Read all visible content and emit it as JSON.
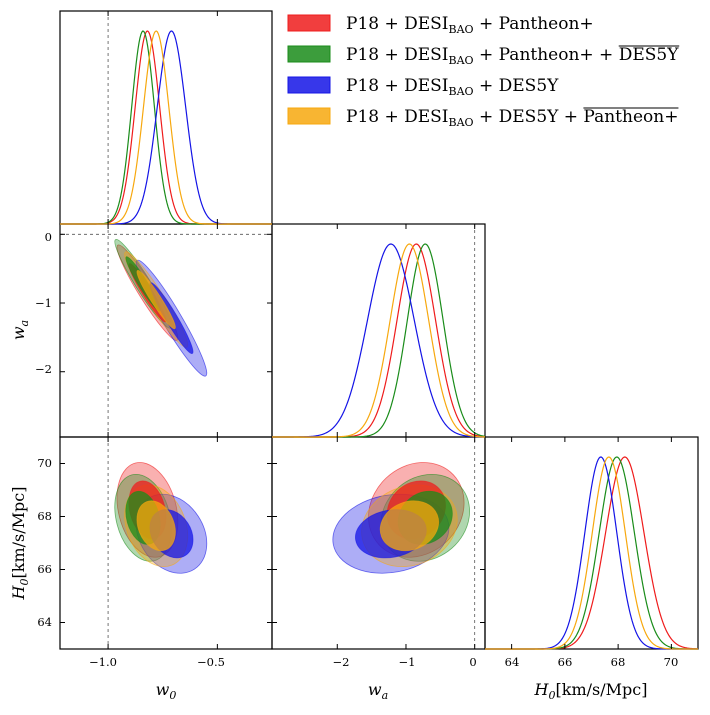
{
  "chart_data": {
    "type": "corner-plot",
    "series": [
      {
        "id": "s1",
        "name": "P18 + DESI_BAO + Pantheon+",
        "color": "#ef1c1c",
        "w0": -0.82,
        "w0_sigma": 0.056,
        "wa": -0.85,
        "wa_sigma": 0.28,
        "H0": 68.25,
        "H0_sigma": 0.72
      },
      {
        "id": "s2",
        "name": "P18 + DESI_BAO + Pantheon+ + DES5Y-bar",
        "color": "#1a8c1a",
        "w0": -0.84,
        "w0_sigma": 0.052,
        "wa": -0.72,
        "wa_sigma": 0.26,
        "H0": 67.95,
        "H0_sigma": 0.66
      },
      {
        "id": "s3",
        "name": "P18 + DESI_BAO + DES5Y",
        "color": "#1414e6",
        "w0": -0.71,
        "w0_sigma": 0.065,
        "wa": -1.22,
        "wa_sigma": 0.34,
        "H0": 67.35,
        "H0_sigma": 0.6
      },
      {
        "id": "s4",
        "name": "P18 + DESI_BAO + DES5Y + Pantheon+-bar",
        "color": "#f7a80e",
        "w0": -0.78,
        "w0_sigma": 0.058,
        "wa": -0.95,
        "wa_sigma": 0.28,
        "H0": 67.65,
        "H0_sigma": 0.62
      }
    ],
    "parameters": [
      "w0",
      "wa",
      "H0"
    ],
    "axes": {
      "w0": {
        "range": [
          -1.22,
          -0.25
        ],
        "ticks": [
          -1.0,
          -0.5
        ],
        "tick_labels": [
          "−1.0",
          "−0.5"
        ],
        "ref_line": -1.0,
        "label": "w0"
      },
      "wa": {
        "range": [
          -2.95,
          0.15
        ],
        "ticks": [
          -2,
          -1,
          0
        ],
        "tick_labels": [
          "−2",
          "−1",
          "0"
        ],
        "ref_line": 0,
        "label": "wa"
      },
      "H0": {
        "range": [
          63.0,
          71.0
        ],
        "ticks": [
          64,
          66,
          68,
          70
        ],
        "tick_labels": [
          "64",
          "66",
          "68",
          "70"
        ],
        "label": "H0[km/s/Mpc]"
      }
    },
    "reference_lines": {
      "w0": -1.0,
      "wa": 0.0
    },
    "legend_placement": "top-right"
  },
  "legend": {
    "prefix": "P18 + DESI",
    "sub": "BAO",
    "items": [
      {
        "rest": " + Pantheon+",
        "bar": ""
      },
      {
        "rest": " + Pantheon+ + ",
        "bar": "DES5Y"
      },
      {
        "rest": " + DES5Y",
        "bar": ""
      },
      {
        "rest": " + DES5Y + ",
        "bar": "Pantheon+"
      }
    ]
  },
  "labels": {
    "w0_main": "w",
    "w0_sub": "0",
    "wa_main": "w",
    "wa_sub": "a",
    "h0_main": "H",
    "h0_sub": "0",
    "h0_units": "[km/s/Mpc]"
  },
  "ticks": {
    "w0": [
      "−1.0",
      "−0.5"
    ],
    "wa_x": [
      "−2",
      "−1",
      "0"
    ],
    "wa_y": [
      "0",
      "−1",
      "−2"
    ],
    "h0_y": [
      "70",
      "68",
      "66",
      "64"
    ],
    "h0_x": [
      "64",
      "66",
      "68",
      "70"
    ]
  }
}
